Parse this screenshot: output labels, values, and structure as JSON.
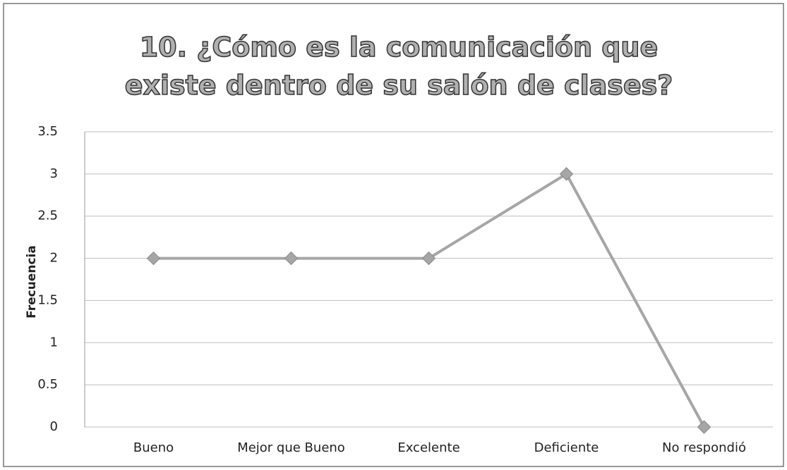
{
  "chart_data": {
    "type": "line",
    "title": "10. ¿Cómo es la comunicación que existe dentro de su salón de clases?",
    "y_label": "Frecuencia",
    "categories": [
      "Bueno",
      "Mejor que Bueno",
      "Excelente",
      "Deficiente",
      "No respondió"
    ],
    "values": [
      2,
      2,
      2,
      3,
      0
    ],
    "color": "#a6a6a6",
    "ylim": [
      0,
      3.5
    ],
    "yticks": [
      0,
      0.5,
      1,
      1.5,
      2,
      2.5,
      3,
      3.5
    ],
    "grid": true
  }
}
